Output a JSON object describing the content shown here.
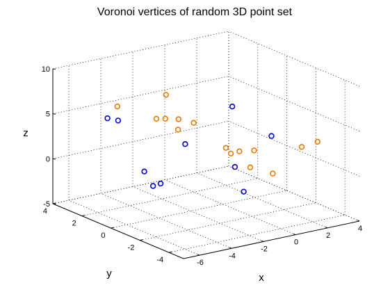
{
  "chart_data": {
    "type": "scatter",
    "title": "Voronoi vertices of random 3D point set",
    "xlabel": "x",
    "ylabel": "y",
    "zlabel": "z",
    "xlim": [
      -7,
      4
    ],
    "ylim": [
      -5,
      4
    ],
    "zlim": [
      -5,
      10
    ],
    "x_ticks": [
      "-6",
      "-4",
      "-2",
      "0",
      "2",
      "4"
    ],
    "y_ticks": [
      "-4",
      "-2",
      "0",
      "2",
      "4"
    ],
    "z_ticks": [
      "-5",
      "0",
      "5",
      "10"
    ],
    "grid": true,
    "marker": "open-circle",
    "series": [
      {
        "color": "#0000cc",
        "points": [
          {
            "x": -1.5,
            "y": -2.3,
            "z": 8.0
          },
          {
            "x": -2.9,
            "y": -0.6,
            "z": 3.2
          },
          {
            "x": -0.7,
            "y": -1.6,
            "z": 0.5
          },
          {
            "x": 0.5,
            "y": -2.8,
            "z": 4.3
          },
          {
            "x": -3.1,
            "y": 3.8,
            "z": 2.9
          },
          {
            "x": -3.4,
            "y": 4.2,
            "z": 3.0
          },
          {
            "x": -4.8,
            "y": -1.0,
            "z": -0.2
          },
          {
            "x": -5.0,
            "y": -0.7,
            "z": -0.6
          },
          {
            "x": -5.0,
            "y": -0.1,
            "z": 0.6
          },
          {
            "x": -2.6,
            "y": -4.3,
            "z": 0.3
          }
        ]
      },
      {
        "color": "#ee7700",
        "points": [
          {
            "x": -3.1,
            "y": 0.5,
            "z": 8.0
          },
          {
            "x": -2.5,
            "y": 0.3,
            "z": 5.2
          },
          {
            "x": -3.6,
            "y": 3.3,
            "z": 5.0
          },
          {
            "x": -0.5,
            "y": -2.7,
            "z": 3.0
          },
          {
            "x": 1.3,
            "y": -4.0,
            "z": 3.6
          },
          {
            "x": 2.2,
            "y": -4.1,
            "z": 3.9
          },
          {
            "x": -0.8,
            "y": 3.7,
            "z": 2.3
          },
          {
            "x": -0.6,
            "y": 3.3,
            "z": 2.5
          },
          {
            "x": -0.8,
            "y": 2.2,
            "z": 2.1
          },
          {
            "x": -0.1,
            "y": 1.9,
            "z": 2.8
          },
          {
            "x": 0.4,
            "y": -0.7,
            "z": 1.2
          },
          {
            "x": 0.1,
            "y": -0.1,
            "z": 1.3
          },
          {
            "x": -0.1,
            "y": -2.0,
            "z": 0.5
          },
          {
            "x": 0.4,
            "y": -3.0,
            "z": 0.3
          },
          {
            "x": 2.5,
            "y": 2.2,
            "z": -1.8
          }
        ]
      }
    ]
  }
}
